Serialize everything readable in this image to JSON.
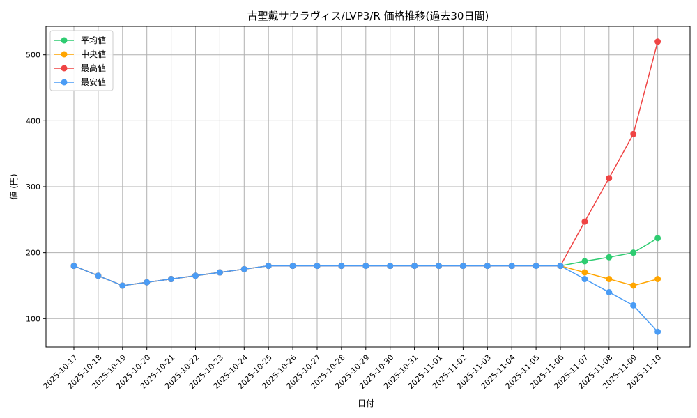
{
  "chart_data": {
    "type": "line",
    "title": "古聖戴サウラヴィス/LVP3/R 価格推移(過去30日間)",
    "xlabel": "日付",
    "ylabel": "値 (円)",
    "categories": [
      "2025-10-17",
      "2025-10-18",
      "2025-10-19",
      "2025-10-20",
      "2025-10-21",
      "2025-10-22",
      "2025-10-23",
      "2025-10-24",
      "2025-10-25",
      "2025-10-26",
      "2025-10-27",
      "2025-10-28",
      "2025-10-29",
      "2025-10-30",
      "2025-10-31",
      "2025-11-01",
      "2025-11-02",
      "2025-11-03",
      "2025-11-04",
      "2025-11-05",
      "2025-11-06",
      "2025-11-07",
      "2025-11-08",
      "2025-11-09",
      "2025-11-10"
    ],
    "ylim": [
      57,
      543
    ],
    "yticks": [
      100,
      200,
      300,
      400,
      500
    ],
    "grid": true,
    "legend_position": "top-left",
    "series": [
      {
        "name": "平均値",
        "color": "#2ecc71",
        "values": [
          180,
          165,
          150,
          155,
          160,
          165,
          170,
          175,
          180,
          180,
          180,
          180,
          180,
          180,
          180,
          180,
          180,
          180,
          180,
          180,
          180,
          187,
          193,
          200,
          222
        ]
      },
      {
        "name": "中央値",
        "color": "#ffa500",
        "values": [
          180,
          165,
          150,
          155,
          160,
          165,
          170,
          175,
          180,
          180,
          180,
          180,
          180,
          180,
          180,
          180,
          180,
          180,
          180,
          180,
          180,
          170,
          160,
          150,
          160
        ]
      },
      {
        "name": "最高値",
        "color": "#ef4444",
        "values": [
          180,
          165,
          150,
          155,
          160,
          165,
          170,
          175,
          180,
          180,
          180,
          180,
          180,
          180,
          180,
          180,
          180,
          180,
          180,
          180,
          180,
          247,
          313,
          380,
          520
        ]
      },
      {
        "name": "最安値",
        "color": "#4a9cf5",
        "values": [
          180,
          165,
          150,
          155,
          160,
          165,
          170,
          175,
          180,
          180,
          180,
          180,
          180,
          180,
          180,
          180,
          180,
          180,
          180,
          180,
          180,
          160,
          140,
          120,
          80
        ]
      }
    ]
  }
}
